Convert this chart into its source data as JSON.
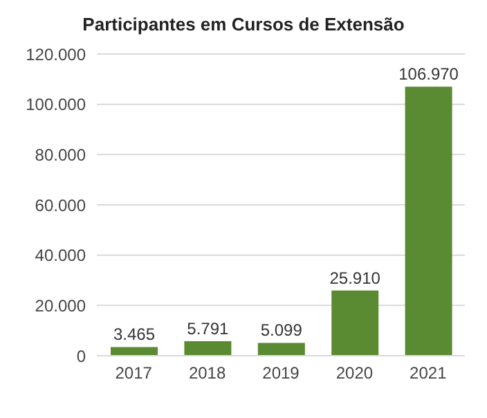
{
  "chart_data": {
    "type": "bar",
    "title": "Participantes em Cursos de Extensão",
    "categories": [
      "2017",
      "2018",
      "2019",
      "2020",
      "2021"
    ],
    "values": [
      3465,
      5791,
      5099,
      25910,
      106970
    ],
    "value_labels": [
      "3.465",
      "5.791",
      "5.099",
      "25.910",
      "106.970"
    ],
    "color": "#5a8a32",
    "ylim": [
      0,
      120000
    ],
    "yticks": [
      {
        "value": 0,
        "label": "0"
      },
      {
        "value": 20000,
        "label": "20.000"
      },
      {
        "value": 40000,
        "label": "40.000"
      },
      {
        "value": 60000,
        "label": "60.000"
      },
      {
        "value": 80000,
        "label": "80.000"
      },
      {
        "value": 100000,
        "label": "100.000"
      },
      {
        "value": 120000,
        "label": "120.000"
      }
    ],
    "grid": "y"
  }
}
